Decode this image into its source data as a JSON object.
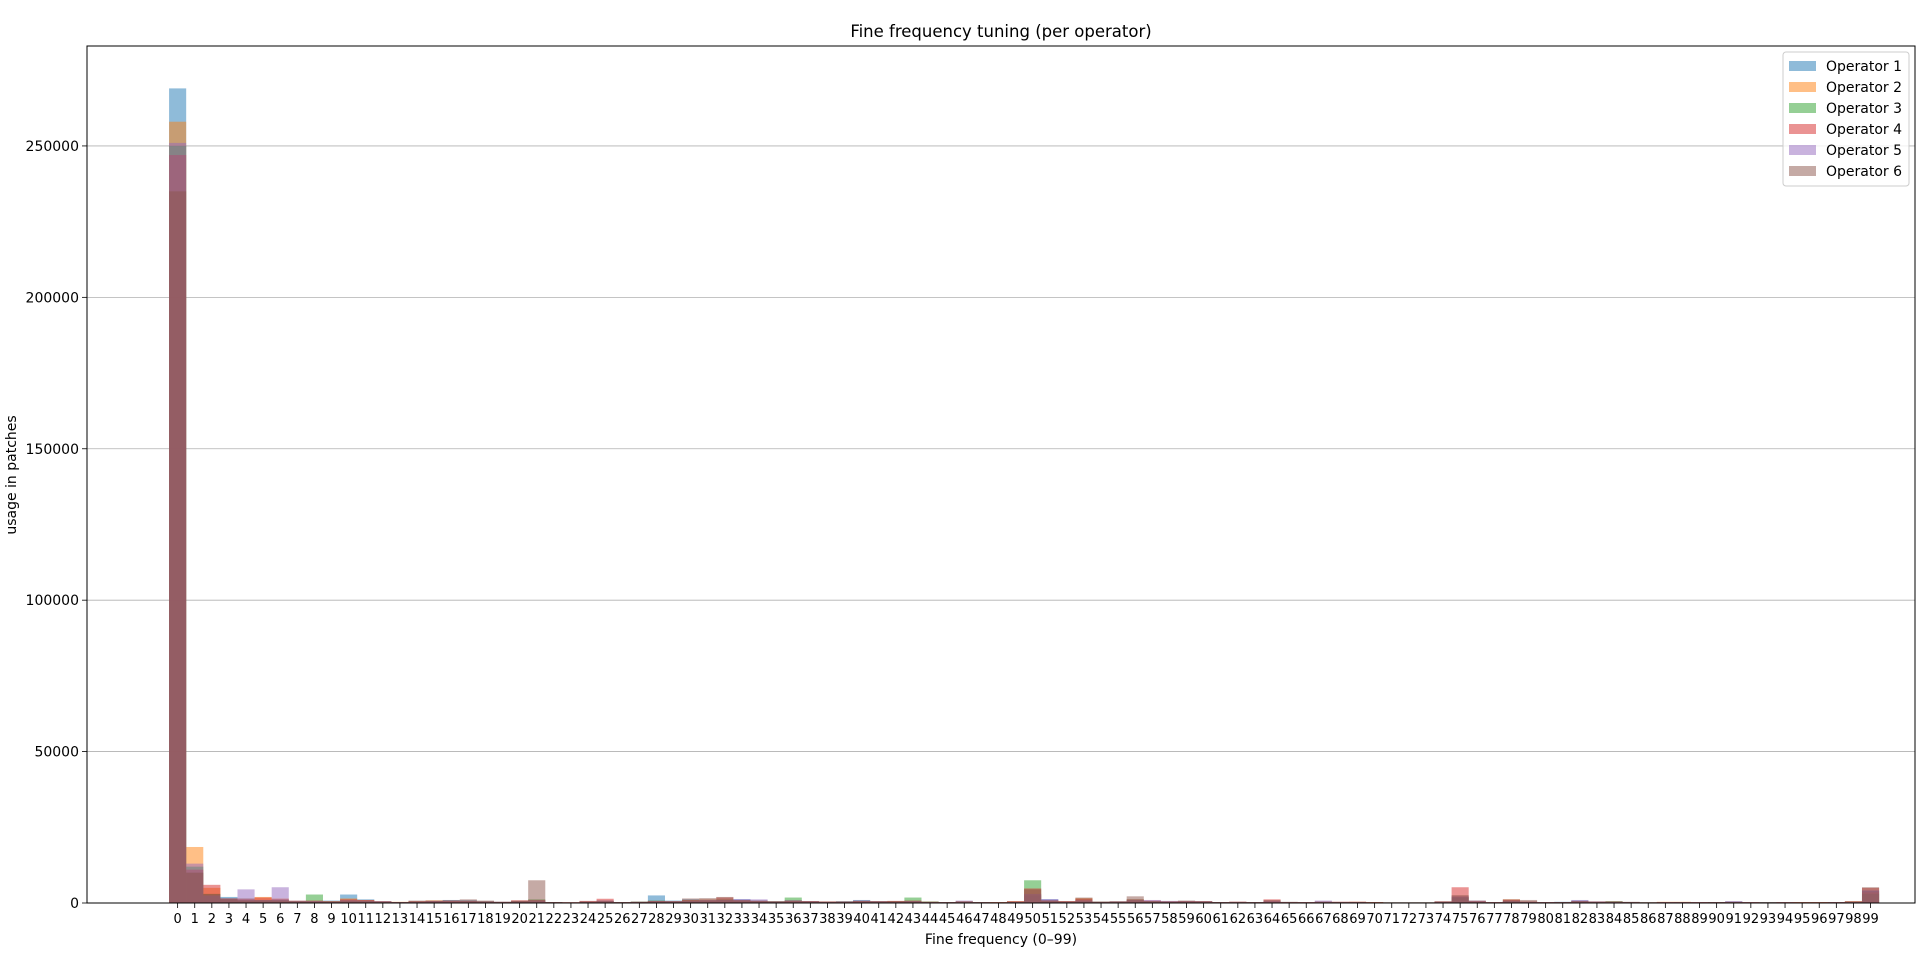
{
  "chart_data": {
    "type": "bar",
    "title": "Fine frequency tuning (per operator)",
    "xlabel": "Fine frequency (0–99)",
    "ylabel": "usage in patches",
    "ylim": [
      0,
      283000
    ],
    "yticks": [
      0,
      50000,
      100000,
      150000,
      200000,
      250000
    ],
    "ytick_labels": [
      "0",
      "50000",
      "100000",
      "150000",
      "200000",
      "250000"
    ],
    "xlim": [
      -5.3,
      101.6
    ],
    "grid": "y-axis",
    "legend_position": "top-right",
    "categories": [
      0,
      1,
      2,
      3,
      4,
      5,
      6,
      7,
      8,
      9,
      10,
      11,
      12,
      13,
      14,
      15,
      16,
      17,
      18,
      19,
      20,
      21,
      22,
      23,
      24,
      25,
      26,
      27,
      28,
      29,
      30,
      31,
      32,
      33,
      34,
      35,
      36,
      37,
      38,
      39,
      40,
      41,
      42,
      43,
      44,
      45,
      46,
      47,
      48,
      49,
      50,
      51,
      52,
      53,
      54,
      55,
      56,
      57,
      58,
      59,
      60,
      61,
      62,
      63,
      64,
      65,
      66,
      67,
      68,
      69,
      70,
      71,
      72,
      73,
      74,
      75,
      76,
      77,
      78,
      79,
      80,
      81,
      82,
      83,
      84,
      85,
      86,
      87,
      88,
      89,
      90,
      91,
      92,
      93,
      94,
      95,
      96,
      97,
      98,
      99
    ],
    "series": [
      {
        "name": "Operator 1",
        "color": "#1f77b4",
        "values": [
          269000,
          10000,
          2500,
          2000,
          1500,
          800,
          1200,
          400,
          600,
          800,
          2800,
          1200,
          600,
          300,
          400,
          800,
          1000,
          900,
          600,
          400,
          600,
          800,
          300,
          200,
          400,
          700,
          300,
          500,
          2500,
          800,
          1200,
          1000,
          900,
          1200,
          800,
          600,
          800,
          600,
          400,
          600,
          1000,
          600,
          500,
          700,
          400,
          300,
          400,
          300,
          200,
          400,
          2500,
          1200,
          500,
          800,
          400,
          500,
          800,
          600,
          400,
          500,
          600,
          300,
          300,
          200,
          500,
          200,
          200,
          400,
          300,
          300,
          200,
          200,
          200,
          200,
          400,
          2000,
          400,
          200,
          600,
          400,
          300,
          400,
          800,
          500,
          300,
          300,
          200,
          200,
          300,
          200,
          300,
          500,
          200,
          300,
          200,
          200,
          200,
          300,
          200,
          4000
        ]
      },
      {
        "name": "Operator 2",
        "color": "#ff7f0e",
        "values": [
          258000,
          18500,
          5000,
          1500,
          1500,
          2000,
          1500,
          800,
          500,
          600,
          1500,
          900,
          500,
          400,
          600,
          900,
          600,
          500,
          400,
          300,
          500,
          600,
          300,
          200,
          400,
          600,
          300,
          400,
          600,
          500,
          1000,
          1200,
          900,
          800,
          600,
          500,
          700,
          600,
          500,
          400,
          700,
          500,
          600,
          500,
          400,
          300,
          500,
          300,
          300,
          600,
          3000,
          800,
          600,
          1600,
          300,
          400,
          900,
          500,
          400,
          600,
          500,
          300,
          400,
          300,
          500,
          300,
          300,
          300,
          300,
          400,
          300,
          200,
          200,
          200,
          400,
          2200,
          500,
          300,
          1200,
          400,
          300,
          300,
          500,
          400,
          400,
          300,
          200,
          400,
          400,
          300,
          300,
          300,
          300,
          200,
          300,
          300,
          300,
          300,
          600,
          3500
        ]
      },
      {
        "name": "Operator 3",
        "color": "#2ca02c",
        "values": [
          250000,
          12000,
          3000,
          1200,
          1000,
          800,
          1000,
          600,
          2800,
          400,
          800,
          600,
          400,
          300,
          500,
          600,
          500,
          600,
          400,
          300,
          600,
          1200,
          300,
          200,
          300,
          500,
          300,
          400,
          800,
          500,
          800,
          700,
          1200,
          700,
          600,
          500,
          1800,
          500,
          400,
          500,
          600,
          500,
          600,
          1800,
          500,
          300,
          400,
          300,
          200,
          400,
          7500,
          800,
          400,
          600,
          400,
          500,
          1200,
          600,
          400,
          500,
          400,
          300,
          300,
          300,
          400,
          200,
          200,
          300,
          300,
          300,
          200,
          200,
          200,
          200,
          300,
          1800,
          400,
          200,
          700,
          400,
          200,
          300,
          500,
          400,
          600,
          300,
          200,
          200,
          200,
          200,
          300,
          300,
          200,
          200,
          200,
          200,
          200,
          200,
          400,
          3000
        ]
      },
      {
        "name": "Operator 4",
        "color": "#d62728",
        "values": [
          247000,
          11000,
          6000,
          1500,
          1200,
          1800,
          1200,
          600,
          800,
          500,
          1200,
          1000,
          600,
          300,
          600,
          700,
          800,
          700,
          500,
          400,
          900,
          1000,
          300,
          300,
          700,
          1400,
          300,
          400,
          700,
          600,
          900,
          800,
          1800,
          900,
          700,
          500,
          800,
          600,
          500,
          500,
          700,
          600,
          700,
          800,
          400,
          300,
          400,
          300,
          300,
          600,
          4800,
          900,
          600,
          1400,
          400,
          500,
          1200,
          800,
          500,
          600,
          600,
          300,
          400,
          300,
          1200,
          300,
          300,
          400,
          400,
          400,
          300,
          200,
          200,
          200,
          500,
          5200,
          600,
          300,
          1100,
          500,
          300,
          300,
          600,
          500,
          400,
          300,
          200,
          300,
          300,
          300,
          300,
          400,
          300,
          200,
          300,
          300,
          300,
          300,
          500,
          5000
        ]
      },
      {
        "name": "Operator 5",
        "color": "#9467bd",
        "values": [
          251000,
          13000,
          2500,
          1500,
          4500,
          1000,
          5200,
          800,
          600,
          400,
          900,
          700,
          500,
          300,
          500,
          700,
          600,
          600,
          400,
          300,
          500,
          800,
          300,
          200,
          400,
          800,
          300,
          300,
          600,
          500,
          800,
          1100,
          1000,
          1300,
          1200,
          400,
          900,
          600,
          400,
          400,
          800,
          500,
          500,
          600,
          300,
          300,
          800,
          300,
          200,
          400,
          3000,
          1300,
          500,
          900,
          300,
          500,
          1000,
          1000,
          700,
          700,
          500,
          300,
          400,
          300,
          700,
          300,
          300,
          800,
          300,
          300,
          200,
          200,
          200,
          200,
          400,
          2200,
          800,
          300,
          800,
          400,
          300,
          300,
          1000,
          500,
          400,
          300,
          200,
          300,
          300,
          300,
          300,
          600,
          300,
          200,
          300,
          200,
          200,
          300,
          400,
          4200
        ]
      },
      {
        "name": "Operator 6",
        "color": "#8c564b",
        "values": [
          235000,
          10000,
          3000,
          1500,
          800,
          1000,
          800,
          600,
          500,
          600,
          800,
          800,
          500,
          300,
          800,
          700,
          900,
          1200,
          800,
          400,
          800,
          7500,
          300,
          200,
          600,
          800,
          300,
          300,
          600,
          600,
          1500,
          1600,
          2000,
          1000,
          800,
          600,
          800,
          600,
          500,
          500,
          700,
          600,
          600,
          600,
          400,
          300,
          600,
          300,
          300,
          500,
          4500,
          800,
          600,
          1800,
          500,
          600,
          2200,
          700,
          600,
          800,
          600,
          300,
          400,
          300,
          1000,
          400,
          300,
          500,
          400,
          400,
          300,
          200,
          200,
          200,
          600,
          2600,
          800,
          300,
          1200,
          1000,
          300,
          300,
          700,
          500,
          600,
          400,
          300,
          300,
          300,
          300,
          300,
          400,
          300,
          300,
          300,
          300,
          300,
          300,
          600,
          5200
        ]
      }
    ]
  }
}
